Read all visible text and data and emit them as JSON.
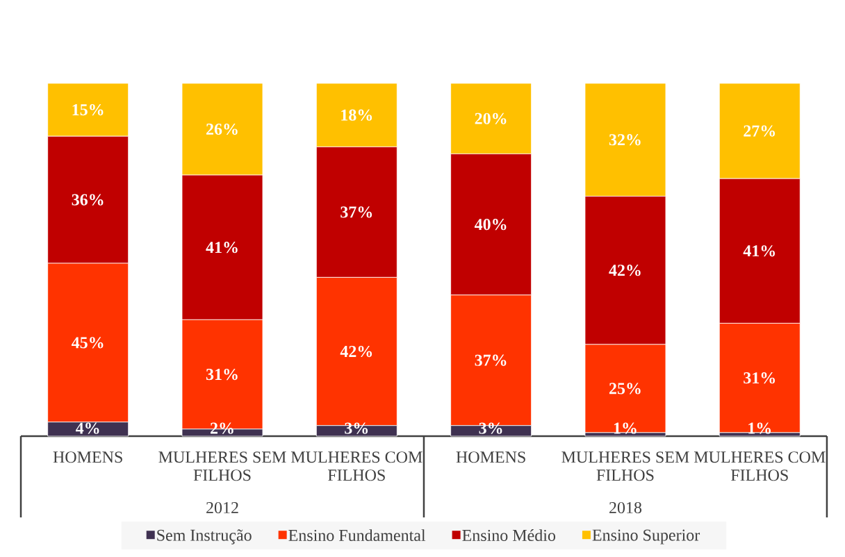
{
  "chart_data": {
    "type": "bar",
    "stacked": true,
    "categories": [
      "HOMENS",
      "MULHERES SEM FILHOS",
      "MULHERES COM FILHOS",
      "HOMENS",
      "MULHERES SEM FILHOS",
      "MULHERES COM FILHOS"
    ],
    "annotations": [
      "2012",
      "2018"
    ],
    "series": [
      {
        "name": "Sem Instrução",
        "color": "#3f3151",
        "values": [
          4,
          2,
          3,
          3,
          1,
          1
        ],
        "value_labels": [
          "4%",
          "2%",
          "3%",
          "3%",
          "1%",
          "1%"
        ]
      },
      {
        "name": "Ensino Fundamental",
        "color": "#ff3300",
        "values": [
          45,
          31,
          42,
          37,
          25,
          31
        ],
        "value_labels": [
          "45%",
          "31%",
          "42%",
          "37%",
          "25%",
          "31%"
        ]
      },
      {
        "name": "Ensino Médio",
        "color": "#c00000",
        "values": [
          36,
          41,
          37,
          40,
          42,
          41
        ],
        "value_labels": [
          "36%",
          "41%",
          "37%",
          "40%",
          "42%",
          "41%"
        ]
      },
      {
        "name": "Ensino Superior",
        "color": "#ffc000",
        "values": [
          15,
          26,
          18,
          20,
          32,
          27
        ],
        "value_labels": [
          "15%",
          "26%",
          "18%",
          "20%",
          "32%",
          "27%"
        ]
      }
    ],
    "ylim": [
      0,
      100
    ],
    "tick_labels": "x",
    "legend": "bottom"
  }
}
